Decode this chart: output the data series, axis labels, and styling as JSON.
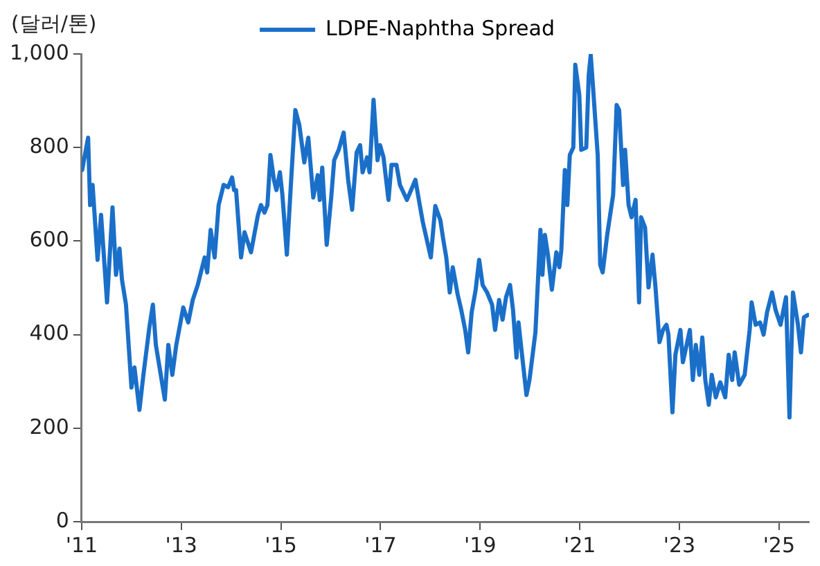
{
  "chart_data": {
    "type": "line",
    "ylabel": "(달러/톤)",
    "legend": "top",
    "marker": "none",
    "line_style": "solid",
    "grid": false,
    "xlim": [
      2011,
      2025.6
    ],
    "xticks": [
      {
        "value": 2011,
        "label": "'11"
      },
      {
        "value": 2013,
        "label": "'13"
      },
      {
        "value": 2015,
        "label": "'15"
      },
      {
        "value": 2017,
        "label": "'17"
      },
      {
        "value": 2019,
        "label": "'19"
      },
      {
        "value": 2021,
        "label": "'21"
      },
      {
        "value": 2023,
        "label": "'23"
      },
      {
        "value": 2025,
        "label": "'25"
      }
    ],
    "ylim": [
      0,
      1000
    ],
    "yticks": [
      {
        "value": 0,
        "label": "0"
      },
      {
        "value": 200,
        "label": "200"
      },
      {
        "value": 400,
        "label": "400"
      },
      {
        "value": 600,
        "label": "600"
      },
      {
        "value": 800,
        "label": "800"
      },
      {
        "value": 1000,
        "label": "1,000"
      }
    ],
    "series": [
      {
        "name": "LDPE-Naphtha Spread",
        "color": "#1a6fc9",
        "x": [
          2011.01,
          2011.13,
          2011.17,
          2011.22,
          2011.32,
          2011.39,
          2011.51,
          2011.62,
          2011.69,
          2011.76,
          2011.81,
          2011.89,
          2012.0,
          2012.06,
          2012.16,
          2012.24,
          2012.36,
          2012.43,
          2012.49,
          2012.67,
          2012.74,
          2012.82,
          2012.9,
          2013.04,
          2013.14,
          2013.23,
          2013.33,
          2013.47,
          2013.52,
          2013.59,
          2013.67,
          2013.75,
          2013.85,
          2013.94,
          2014.02,
          2014.06,
          2014.1,
          2014.2,
          2014.27,
          2014.4,
          2014.54,
          2014.6,
          2014.67,
          2014.73,
          2014.79,
          2014.86,
          2014.91,
          2014.98,
          2015.03,
          2015.12,
          2015.2,
          2015.29,
          2015.37,
          2015.47,
          2015.55,
          2015.65,
          2015.74,
          2015.78,
          2015.83,
          2015.92,
          2016.01,
          2016.07,
          2016.16,
          2016.26,
          2016.35,
          2016.43,
          2016.52,
          2016.59,
          2016.64,
          2016.73,
          2016.78,
          2016.86,
          2016.94,
          2016.99,
          2017.06,
          2017.16,
          2017.22,
          2017.32,
          2017.39,
          2017.53,
          2017.7,
          2017.77,
          2017.85,
          2018.01,
          2018.1,
          2018.2,
          2018.26,
          2018.32,
          2018.39,
          2018.45,
          2018.55,
          2018.62,
          2018.7,
          2018.76,
          2018.83,
          2018.91,
          2018.98,
          2019.05,
          2019.14,
          2019.24,
          2019.3,
          2019.38,
          2019.45,
          2019.52,
          2019.6,
          2019.66,
          2019.73,
          2019.77,
          2019.83,
          2019.93,
          2019.99,
          2020.11,
          2020.21,
          2020.25,
          2020.3,
          2020.36,
          2020.44,
          2020.53,
          2020.59,
          2020.63,
          2020.7,
          2020.75,
          2020.8,
          2020.87,
          2020.91,
          2020.99,
          2021.03,
          2021.13,
          2021.18,
          2021.22,
          2021.27,
          2021.36,
          2021.41,
          2021.46,
          2021.55,
          2021.67,
          2021.74,
          2021.79,
          2021.87,
          2021.91,
          2021.98,
          2022.04,
          2022.12,
          2022.19,
          2022.23,
          2022.31,
          2022.38,
          2022.46,
          2022.52,
          2022.6,
          2022.67,
          2022.74,
          2022.78,
          2022.86,
          2022.92,
          2023.02,
          2023.07,
          2023.21,
          2023.27,
          2023.33,
          2023.4,
          2023.46,
          2023.52,
          2023.59,
          2023.65,
          2023.73,
          2023.82,
          2023.92,
          2023.99,
          2024.06,
          2024.11,
          2024.2,
          2024.31,
          2024.41,
          2024.45,
          2024.53,
          2024.62,
          2024.69,
          2024.76,
          2024.86,
          2024.93,
          2025.03,
          2025.14,
          2025.21,
          2025.28,
          2025.38,
          2025.44,
          2025.5,
          2025.58
        ],
        "values": [
          752,
          821,
          677,
          720,
          560,
          656,
          469,
          672,
          528,
          584,
          517,
          464,
          287,
          330,
          239,
          314,
          416,
          464,
          378,
          261,
          378,
          314,
          378,
          458,
          426,
          474,
          506,
          565,
          533,
          624,
          565,
          677,
          720,
          715,
          736,
          709,
          709,
          565,
          619,
          576,
          656,
          677,
          661,
          677,
          784,
          731,
          709,
          747,
          699,
          571,
          720,
          880,
          848,
          768,
          821,
          693,
          741,
          688,
          757,
          592,
          693,
          773,
          795,
          832,
          731,
          667,
          789,
          805,
          747,
          779,
          747,
          902,
          773,
          805,
          779,
          688,
          763,
          763,
          720,
          688,
          731,
          688,
          640,
          565,
          675,
          645,
          603,
          565,
          490,
          544,
          485,
          453,
          410,
          362,
          448,
          496,
          560,
          506,
          490,
          464,
          410,
          474,
          432,
          480,
          506,
          453,
          351,
          426,
          367,
          271,
          303,
          405,
          624,
          528,
          613,
          571,
          496,
          576,
          544,
          581,
          752,
          677,
          784,
          800,
          977,
          913,
          795,
          800,
          955,
          998,
          923,
          784,
          549,
          533,
          613,
          699,
          891,
          880,
          720,
          795,
          677,
          651,
          688,
          469,
          651,
          629,
          501,
          571,
          501,
          384,
          410,
          421,
          400,
          234,
          357,
          410,
          341,
          410,
          303,
          378,
          314,
          394,
          303,
          250,
          314,
          266,
          298,
          266,
          357,
          303,
          362,
          293,
          314,
          410,
          469,
          421,
          426,
          400,
          448,
          490,
          453,
          421,
          480,
          223,
          490,
          421,
          362,
          437,
          442
        ]
      }
    ]
  }
}
